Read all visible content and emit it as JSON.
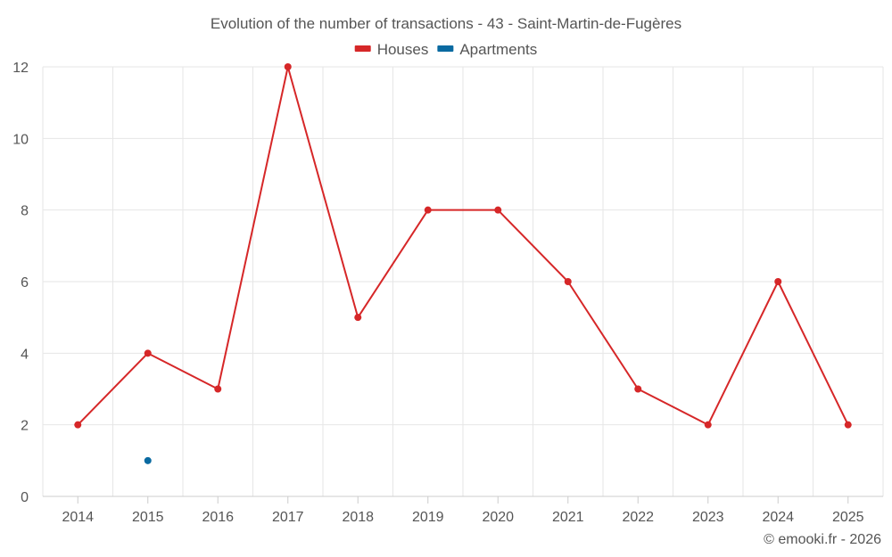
{
  "chart_data": {
    "type": "line",
    "title": "Evolution of the number of transactions - 43 - Saint-Martin-de-Fugères",
    "categories": [
      "2014",
      "2015",
      "2016",
      "2017",
      "2018",
      "2019",
      "2020",
      "2021",
      "2022",
      "2023",
      "2024",
      "2025"
    ],
    "series": [
      {
        "name": "Houses",
        "color": "#d62728",
        "values": [
          2,
          4,
          3,
          12,
          5,
          8,
          8,
          6,
          3,
          2,
          6,
          2
        ]
      },
      {
        "name": "Apartments",
        "color": "#0a6aa1",
        "values": [
          null,
          1,
          null,
          null,
          null,
          null,
          null,
          null,
          null,
          null,
          null,
          null
        ]
      }
    ],
    "ylim": [
      0,
      12
    ],
    "yticks": [
      0,
      2,
      4,
      6,
      8,
      10,
      12
    ],
    "xlabel": "",
    "ylabel": "",
    "legend_position": "top-center",
    "grid": true
  },
  "credit": "© emooki.fr - 2026"
}
